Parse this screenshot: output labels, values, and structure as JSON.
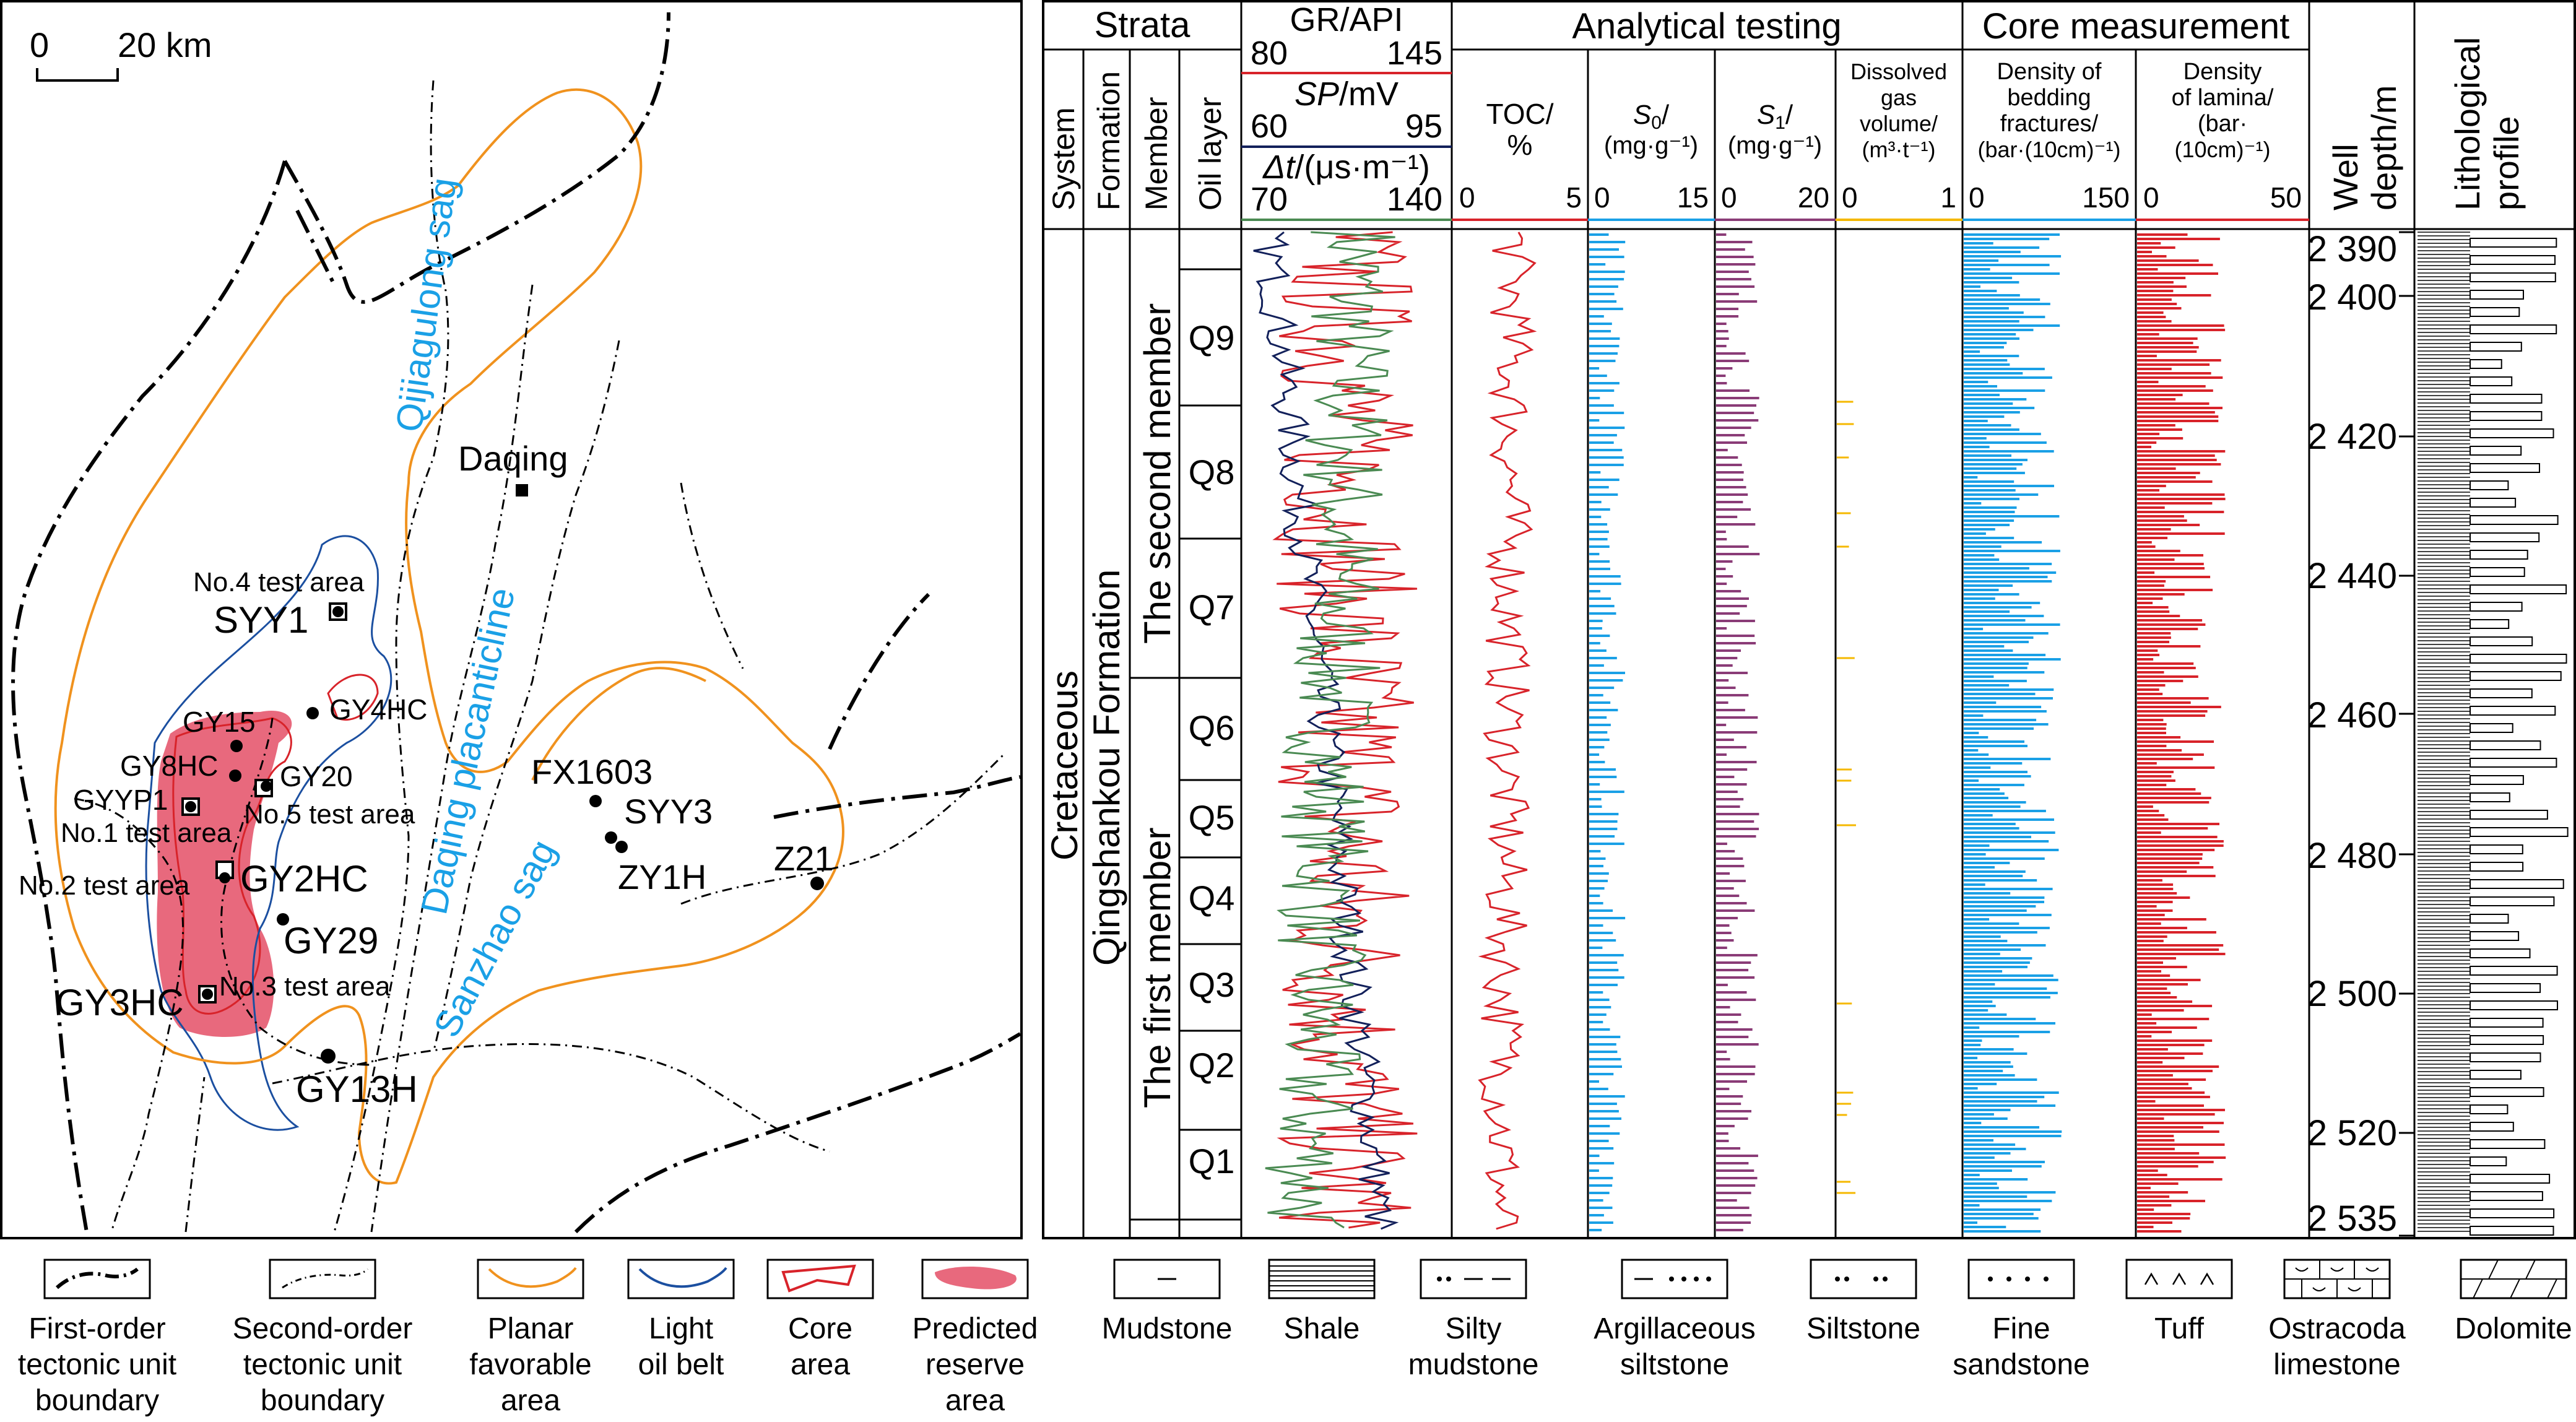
{
  "colors": {
    "first_order": "#000000",
    "orange": "#f0921e",
    "blue": "#1b4fa0",
    "red": "#d8232a",
    "pink": "#e8697d",
    "cyan": "#1aa0e6",
    "purple": "#8a3c77",
    "green": "#4a8a52",
    "navy": "#12205a",
    "yellow": "#f5b800"
  },
  "map": {
    "scale_start": "0",
    "scale_end": "20 km",
    "region_labels": [
      {
        "id": "qijiagulong",
        "text": "Qijiagulong sag"
      },
      {
        "id": "daqing-placanticline",
        "text": "Daqing placanticline"
      },
      {
        "id": "sanzhao",
        "text": "Sanzhao sag"
      }
    ],
    "cities": [
      {
        "id": "daqing",
        "text": "Daqing"
      }
    ],
    "wells": [
      {
        "id": "syy1",
        "text": "SYY1"
      },
      {
        "id": "gy4hc",
        "text": "GY4HC"
      },
      {
        "id": "gy15",
        "text": "GY15"
      },
      {
        "id": "gy8hc",
        "text": "GY8HC"
      },
      {
        "id": "gy20",
        "text": "GY20"
      },
      {
        "id": "gyyp1",
        "text": "GYYP1"
      },
      {
        "id": "gy2hc",
        "text": "GY2HC"
      },
      {
        "id": "gy29",
        "text": "GY29"
      },
      {
        "id": "gy3hc",
        "text": "GY3HC"
      },
      {
        "id": "gy13h",
        "text": "GY13H"
      },
      {
        "id": "fx1603",
        "text": "FX1603"
      },
      {
        "id": "syy3",
        "text": "SYY3"
      },
      {
        "id": "zy1h",
        "text": "ZY1H"
      },
      {
        "id": "z21",
        "text": "Z21"
      }
    ],
    "test_areas": [
      {
        "id": "no4",
        "text": "No.4 test area"
      },
      {
        "id": "no5",
        "text": "No.5 test area"
      },
      {
        "id": "no1",
        "text": "No.1 test area"
      },
      {
        "id": "no2",
        "text": "No.2 test area"
      },
      {
        "id": "no3",
        "text": "No.3 test area"
      }
    ]
  },
  "log": {
    "strata_title": "Strata",
    "strata_cols": [
      "System",
      "Formation",
      "Member",
      "Oil layer"
    ],
    "system": "Cretaceous",
    "formation": "Qingshankou Formation",
    "members": [
      "The second member",
      "The first member"
    ],
    "oil_layers": [
      "Q9",
      "Q8",
      "Q7",
      "Q6",
      "Q5",
      "Q4",
      "Q3",
      "Q2",
      "Q1"
    ],
    "curves": [
      {
        "id": "gr",
        "label": "GR/API",
        "min": "80",
        "max": "145"
      },
      {
        "id": "sp",
        "label_italic": "SP",
        "label_rest": "/mV",
        "min": "60",
        "max": "95"
      },
      {
        "id": "dt",
        "label_italic": "Δt",
        "label_rest": "/(μs·m⁻¹)",
        "min": "70",
        "max": "140"
      }
    ],
    "analytical_title": "Analytical testing",
    "analytical": [
      {
        "id": "toc",
        "label_line1": "TOC/",
        "label_line2": "%",
        "min": "0",
        "max": "5"
      },
      {
        "id": "s0",
        "label_sym": "S",
        "label_sub": "0",
        "label_rest": "/",
        "label_line2": "(mg·g⁻¹)",
        "min": "0",
        "max": "15"
      },
      {
        "id": "s1",
        "label_sym": "S",
        "label_sub": "1",
        "label_rest": "/",
        "label_line2": "(mg·g⁻¹)",
        "min": "0",
        "max": "20"
      },
      {
        "id": "gas",
        "label_lines": [
          "Dissolved",
          "gas",
          "volume/",
          "(m³·t⁻¹)"
        ],
        "min": "0",
        "max": "1"
      }
    ],
    "core_title": "Core measurement",
    "core": [
      {
        "id": "bedding",
        "label_lines": [
          "Density of",
          "bedding",
          "fractures/",
          "(bar·(10cm)⁻¹)"
        ],
        "min": "0",
        "max": "150"
      },
      {
        "id": "lamina",
        "label_lines": [
          "Density",
          "of lamina/",
          "(bar·",
          "(10cm)⁻¹)"
        ],
        "min": "0",
        "max": "50"
      }
    ],
    "depth_title_lines": [
      "Well",
      "depth/m"
    ],
    "lith_title_lines": [
      "Lithological",
      "profile"
    ],
    "depths": [
      "2 390",
      "2 400",
      "2 420",
      "2 440",
      "2 460",
      "2 480",
      "2 500",
      "2 520",
      "2 535"
    ]
  },
  "legend": [
    {
      "id": "first-order",
      "lines": [
        "First-order",
        "tectonic unit",
        "boundary"
      ]
    },
    {
      "id": "second-order",
      "lines": [
        "Second-order",
        "tectonic unit",
        "boundary"
      ]
    },
    {
      "id": "planar",
      "lines": [
        "Planar",
        "favorable",
        "area"
      ]
    },
    {
      "id": "light-oil",
      "lines": [
        "Light",
        "oil belt"
      ]
    },
    {
      "id": "core-area",
      "lines": [
        "Core",
        "area"
      ]
    },
    {
      "id": "predicted",
      "lines": [
        "Predicted",
        "reserve",
        "area"
      ]
    },
    {
      "id": "mudstone",
      "lines": [
        "Mudstone"
      ]
    },
    {
      "id": "shale",
      "lines": [
        "Shale"
      ]
    },
    {
      "id": "silty-mudstone",
      "lines": [
        "Silty",
        "mudstone"
      ]
    },
    {
      "id": "argillaceous-siltstone",
      "lines": [
        "Argillaceous",
        "siltstone"
      ]
    },
    {
      "id": "siltstone",
      "lines": [
        "Siltstone"
      ]
    },
    {
      "id": "fine-sandstone",
      "lines": [
        "Fine",
        "sandstone"
      ]
    },
    {
      "id": "tuff",
      "lines": [
        "Tuff"
      ]
    },
    {
      "id": "ostracoda",
      "lines": [
        "Ostracoda",
        "limestone"
      ]
    },
    {
      "id": "dolomite",
      "lines": [
        "Dolomite"
      ]
    }
  ]
}
